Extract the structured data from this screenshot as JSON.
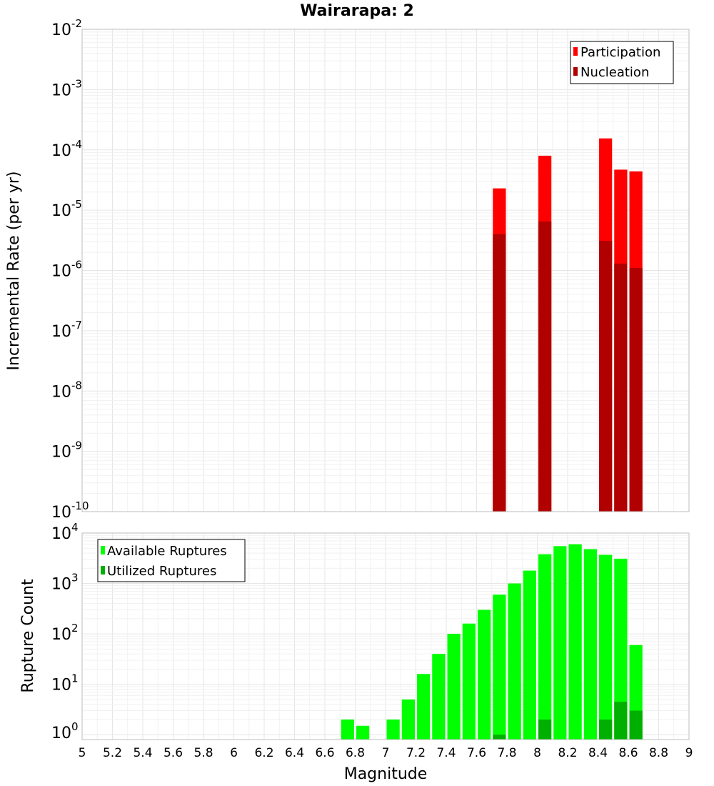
{
  "chart_data": [
    {
      "id": "top",
      "type": "bar",
      "scale": "log",
      "title": "Wairarapa: 2",
      "xlabel": "",
      "ylabel": "Incremental Rate (per yr)",
      "xlim": [
        5,
        9
      ],
      "ylim_exp": [
        -10,
        -2
      ],
      "y_ticks": [
        {
          "base": "10",
          "exp": "-2"
        },
        {
          "base": "10",
          "exp": "-3"
        },
        {
          "base": "10",
          "exp": "-4"
        },
        {
          "base": "10",
          "exp": "-5"
        },
        {
          "base": "10",
          "exp": "-6"
        },
        {
          "base": "10",
          "exp": "-7"
        },
        {
          "base": "10",
          "exp": "-8"
        },
        {
          "base": "10",
          "exp": "-9"
        },
        {
          "base": "10",
          "exp": "-10"
        }
      ],
      "legend_position": "top-right",
      "bin_width": 0.1,
      "x": [
        7.75,
        8.05,
        8.45,
        8.55,
        8.65
      ],
      "series": [
        {
          "name": "Participation",
          "color": "#ff0000",
          "values": [
            2.3e-05,
            8e-05,
            0.000155,
            4.7e-05,
            4.4e-05
          ]
        },
        {
          "name": "Nucleation",
          "color": "#b00000",
          "values": [
            4e-06,
            6.5e-06,
            3.1e-06,
            1.3e-06,
            1.1e-06
          ]
        }
      ]
    },
    {
      "id": "bottom",
      "type": "bar",
      "scale": "log",
      "title": "",
      "xlabel": "Magnitude",
      "ylabel": "Rupture Count",
      "xlim": [
        5,
        9
      ],
      "ylim_exp": [
        0,
        4
      ],
      "y_ticks": [
        {
          "base": "10",
          "exp": "4"
        },
        {
          "base": "10",
          "exp": "3"
        },
        {
          "base": "10",
          "exp": "2"
        },
        {
          "base": "10",
          "exp": "1"
        },
        {
          "base": "10",
          "exp": "0"
        }
      ],
      "x_ticks": [
        "5",
        "5.2",
        "5.4",
        "5.6",
        "5.8",
        "6",
        "6.2",
        "6.4",
        "6.6",
        "6.8",
        "7",
        "7.2",
        "7.4",
        "7.6",
        "7.8",
        "8",
        "8.2",
        "8.4",
        "8.6",
        "8.8",
        "9"
      ],
      "legend_position": "top-left",
      "bin_width": 0.1,
      "series": [
        {
          "name": "Available Ruptures",
          "color": "#00ff00",
          "x": [
            6.75,
            6.85,
            7.05,
            7.15,
            7.25,
            7.35,
            7.45,
            7.55,
            7.65,
            7.75,
            7.85,
            7.95,
            8.05,
            8.15,
            8.25,
            8.35,
            8.45,
            8.55,
            8.65
          ],
          "values": [
            2,
            1.5,
            2,
            5,
            16,
            40,
            100,
            160,
            300,
            600,
            1000,
            1800,
            3800,
            5500,
            6000,
            4800,
            3700,
            3100,
            60
          ]
        },
        {
          "name": "Utilized Ruptures",
          "color": "#00b000",
          "x": [
            7.75,
            8.05,
            8.45,
            8.55,
            8.65
          ],
          "values": [
            1,
            2,
            2,
            4.5,
            3
          ]
        }
      ]
    }
  ]
}
